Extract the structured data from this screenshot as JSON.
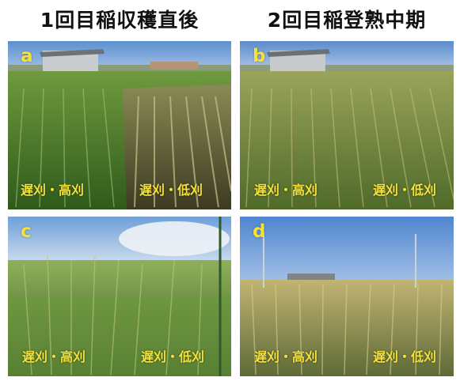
{
  "headers": {
    "left": "1回目稲収穫直後",
    "right": "2回目稲登熟中期"
  },
  "panels": {
    "a": {
      "letter": "a",
      "left_label": "遅刈・高刈",
      "right_label": "遅刈・低刈"
    },
    "b": {
      "letter": "b",
      "left_label": "遅刈・高刈",
      "right_label": "遅刈・低刈"
    },
    "c": {
      "letter": "c",
      "left_label": "遅刈・高刈",
      "right_label": "遅刈・低刈"
    },
    "d": {
      "letter": "d",
      "left_label": "遅刈・高刈",
      "right_label": "遅刈・低刈"
    }
  }
}
